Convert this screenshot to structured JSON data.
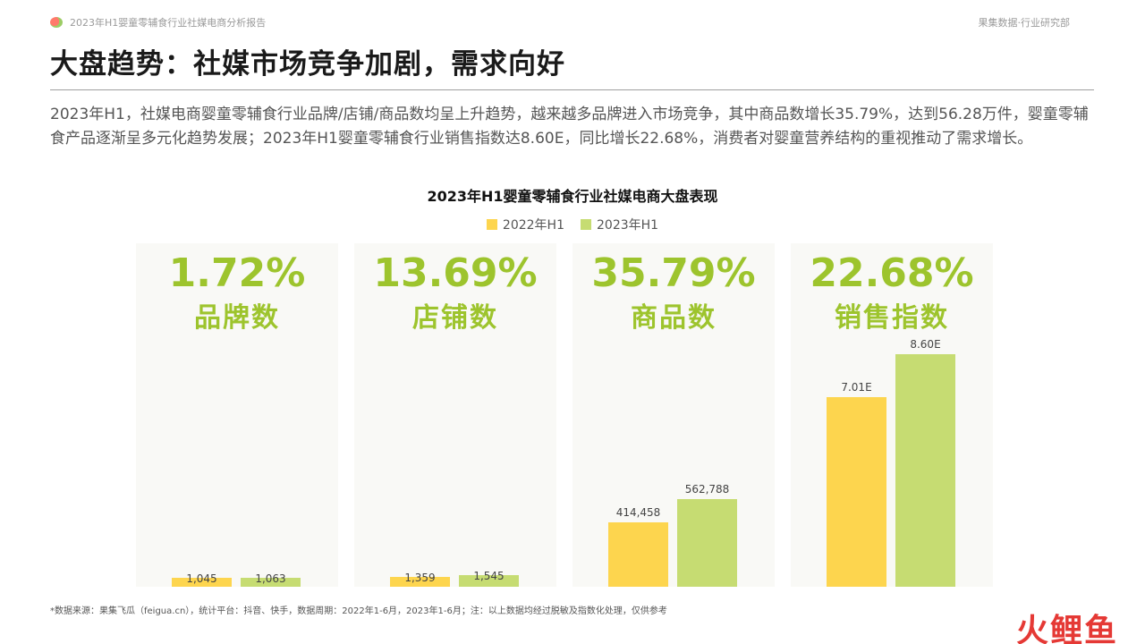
{
  "header": {
    "report_title": "2023年H1婴童零辅食行业社媒电商分析报告",
    "brand_tag": "果集数据·行业研究部"
  },
  "main_title": "大盘趋势：社媒市场竞争加剧，需求向好",
  "summary": "2023年H1，社媒电商婴童零辅食行业品牌/店铺/商品数均呈上升趋势，越来越多品牌进入市场竞争，其中商品数增长35.79%，达到56.28万件，婴童零辅食产品逐渐呈多元化趋势发展；2023年H1婴童零辅食行业销售指数达8.60E，同比增长22.68%，消费者对婴童营养结构的重视推动了需求增长。",
  "footnote": "*数据来源：果集飞瓜（feigua.cn），统计平台：抖音、快手，数据周期：2022年1-6月，2023年1-6月；注：以上数据均经过脱敏及指数化处理，仅供参考",
  "watermark": "火鲤鱼",
  "colors": {
    "series_2022": "#fdd54e",
    "series_2023": "#c6dc72",
    "accent": "#9dc42d"
  },
  "chart_data": {
    "type": "bar",
    "title": "2023年H1婴童零辅食行业社媒电商大盘表现",
    "legend_position": "top-center",
    "series": [
      {
        "name": "2022年H1"
      },
      {
        "name": "2023年H1"
      }
    ],
    "panels": [
      {
        "metric": "品牌数",
        "growth": "1.72%",
        "values": [
          1045,
          1063
        ],
        "labels": [
          "1,045",
          "1,063"
        ]
      },
      {
        "metric": "店铺数",
        "growth": "13.69%",
        "values": [
          1359,
          1545
        ],
        "labels": [
          "1,359",
          "1,545"
        ]
      },
      {
        "metric": "商品数",
        "growth": "35.79%",
        "values": [
          414458,
          562788
        ],
        "labels": [
          "414,458",
          "562,788"
        ]
      },
      {
        "metric": "销售指数",
        "growth": "22.68%",
        "values": [
          7.01,
          8.6
        ],
        "labels": [
          "7.01E",
          "8.60E"
        ]
      }
    ]
  }
}
